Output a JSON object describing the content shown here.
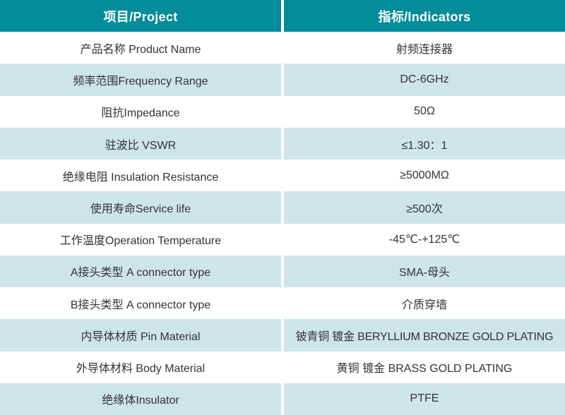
{
  "table": {
    "header": {
      "project": "项目/Project",
      "indicators": "指标/Indicators"
    },
    "rows": [
      {
        "project": "产品名称 Product Name",
        "indicator": "射频连接器"
      },
      {
        "project": "频率范围Frequency Range",
        "indicator": "DC-6GHz"
      },
      {
        "project": "阻抗Impedance",
        "indicator": "50Ω"
      },
      {
        "project": "驻波比 VSWR",
        "indicator": "≤1.30：1"
      },
      {
        "project": "绝缘电阻 Insulation Resistance",
        "indicator": "≥5000MΩ"
      },
      {
        "project": "使用寿命Service life",
        "indicator": "≥500次"
      },
      {
        "project": "工作温度Operation Temperature",
        "indicator": "-45℃-+125℃"
      },
      {
        "project": "A接头类型 A connector type",
        "indicator": "SMA-母头"
      },
      {
        "project": "B接头类型 A connector type",
        "indicator": "介质穿墙"
      },
      {
        "project": "内导体材质 Pin Material",
        "indicator": "铍青铜 镀金 BERYLLIUM BRONZE GOLD PLATING"
      },
      {
        "project": "外导体材料 Body Material",
        "indicator": "黄铜 镀金 BRASS GOLD PLATING"
      },
      {
        "project": "绝缘体Insulator",
        "indicator": "PTFE"
      }
    ],
    "colors": {
      "header_bg": "#038C9A",
      "header_text": "#ffffff",
      "row_bg": "#ffffff",
      "row_alt_bg": "#CDE5E9",
      "body_text": "#333333"
    }
  }
}
